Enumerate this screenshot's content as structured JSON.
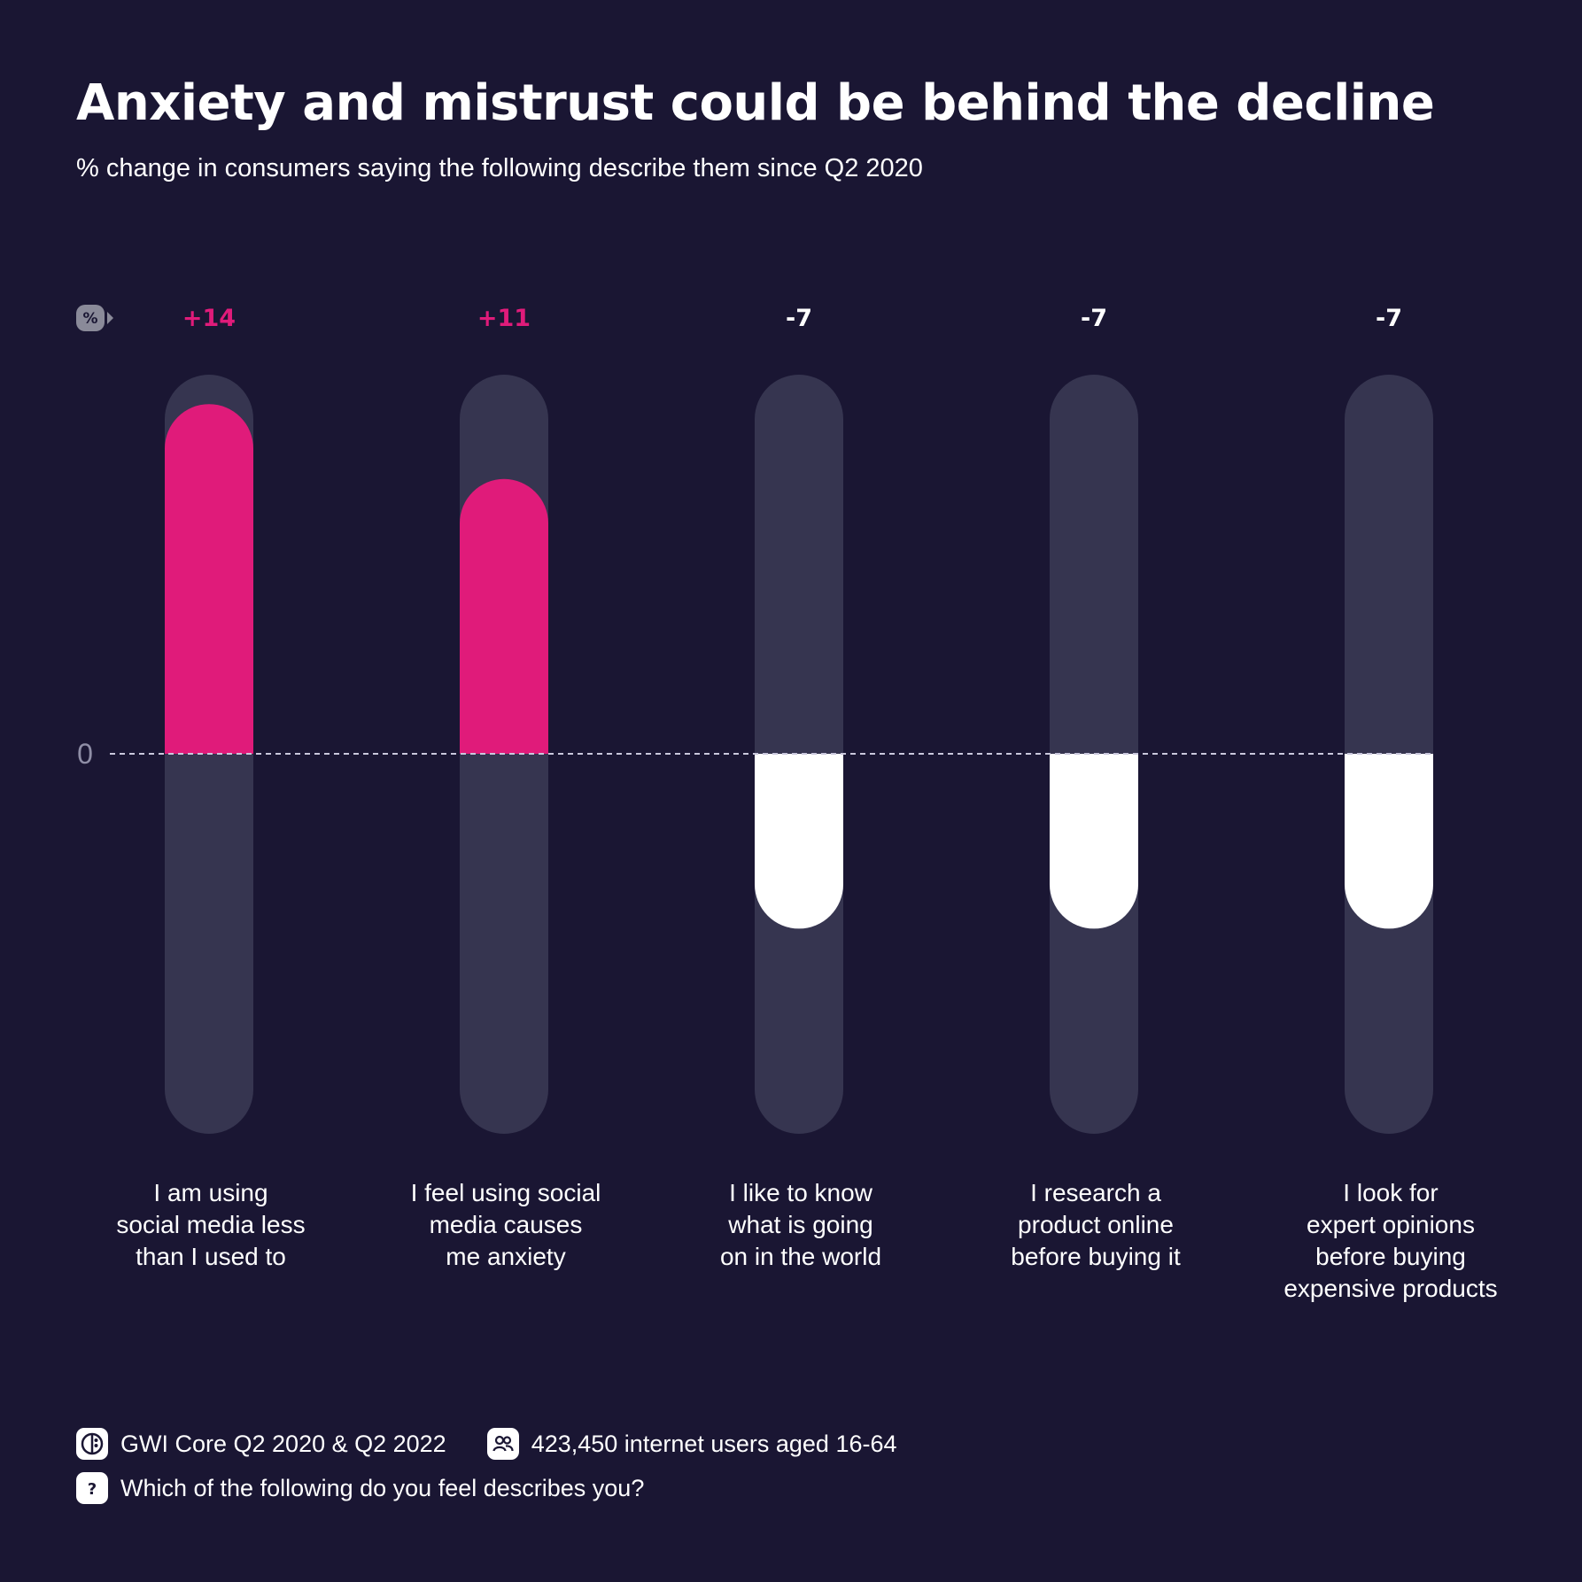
{
  "title": "Anxiety and mistrust could be behind the decline",
  "subtitle": "% change in consumers saying the following describe them since Q2 2020",
  "percent_badge": "%",
  "colors": {
    "background": "#1a1633",
    "track": "#363550",
    "positive": "#e01b7a",
    "negative": "#ffffff",
    "positive_label": "#e01b7a",
    "negative_label": "#ffffff"
  },
  "chart_data": {
    "type": "bar",
    "categories": [
      [
        "I am using",
        "social media less",
        "than I used to"
      ],
      [
        "I  feel using social",
        "media causes",
        "me anxiety"
      ],
      [
        "I like to know",
        "what is going",
        "on in the world"
      ],
      [
        "I research a",
        "product online",
        "before buying it"
      ],
      [
        "I look for",
        "expert opinions",
        "before buying",
        "expensive products"
      ]
    ],
    "values": [
      14,
      11,
      -7,
      -7,
      -7
    ],
    "value_labels": [
      "+14",
      "+11",
      "-7",
      "-7",
      "-7"
    ],
    "ylim": [
      -15,
      15
    ],
    "zero_label": "0",
    "grid": false,
    "baseline": "dashed"
  },
  "footer": {
    "source": "GWI Core Q2 2020 & Q2 2022",
    "sample": "423,450 internet users aged 16-64",
    "question": "Which of the following do you feel describes you?",
    "icons": [
      "gwi-logo-icon",
      "people-icon",
      "question-icon"
    ]
  }
}
